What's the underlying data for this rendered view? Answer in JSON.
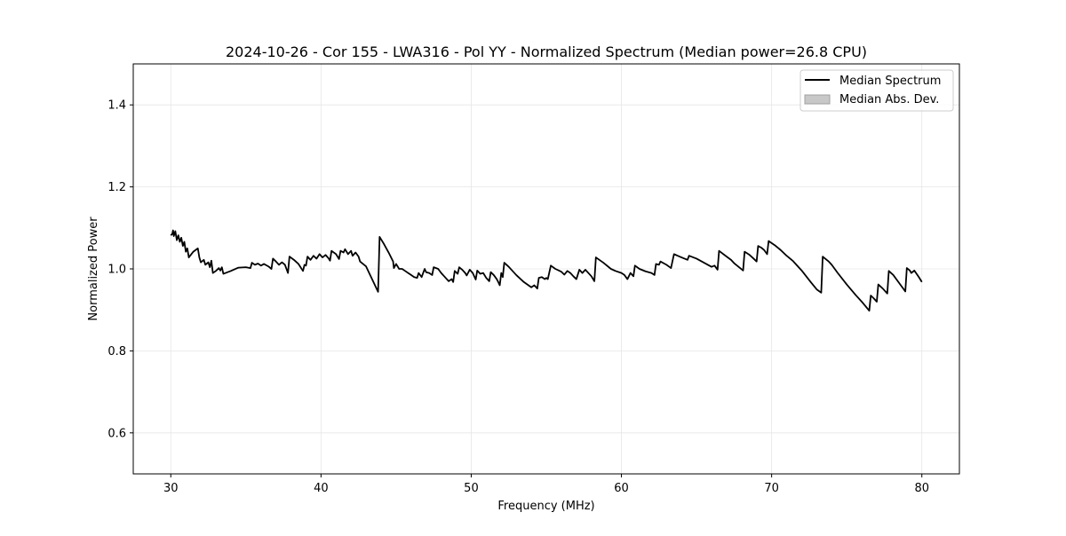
{
  "chart_data": {
    "type": "line",
    "title": "2024-10-26 - Cor 155 - LWA316 - Pol YY - Normalized Spectrum (Median power=26.8 CPU)",
    "xlabel": "Frequency (MHz)",
    "ylabel": "Normalized Power",
    "xlim": [
      27.5,
      82.5
    ],
    "ylim": [
      0.5,
      1.5
    ],
    "xticks": [
      30,
      40,
      50,
      60,
      70,
      80
    ],
    "yticks": [
      0.6,
      0.8,
      1.0,
      1.2,
      1.4
    ],
    "xtick_labels": [
      "30",
      "40",
      "50",
      "60",
      "70",
      "80"
    ],
    "ytick_labels": [
      "0.6",
      "0.8",
      "1.0",
      "1.2",
      "1.4"
    ],
    "grid": true,
    "legend_position": "top-right",
    "legend": [
      {
        "label": "Median Spectrum",
        "kind": "line",
        "color": "#000000"
      },
      {
        "label": "Median Abs. Dev.",
        "kind": "patch",
        "color": "#c8c8c8"
      }
    ],
    "series": [
      {
        "name": "Median Spectrum",
        "color": "#000000",
        "points": [
          [
            30.0,
            1.082
          ],
          [
            30.1,
            1.085
          ],
          [
            30.15,
            1.094
          ],
          [
            30.2,
            1.08
          ],
          [
            30.3,
            1.092
          ],
          [
            30.4,
            1.07
          ],
          [
            30.5,
            1.082
          ],
          [
            30.6,
            1.066
          ],
          [
            30.7,
            1.076
          ],
          [
            30.8,
            1.056
          ],
          [
            30.9,
            1.066
          ],
          [
            31.0,
            1.042
          ],
          [
            31.1,
            1.05
          ],
          [
            31.2,
            1.028
          ],
          [
            31.5,
            1.042
          ],
          [
            31.8,
            1.05
          ],
          [
            31.9,
            1.028
          ],
          [
            32.0,
            1.016
          ],
          [
            32.2,
            1.022
          ],
          [
            32.3,
            1.01
          ],
          [
            32.5,
            1.016
          ],
          [
            32.6,
            1.004
          ],
          [
            32.7,
            1.02
          ],
          [
            32.8,
            0.99
          ],
          [
            33.0,
            0.995
          ],
          [
            33.2,
            1.002
          ],
          [
            33.3,
            0.996
          ],
          [
            33.4,
            1.004
          ],
          [
            33.5,
            0.988
          ],
          [
            34.0,
            0.995
          ],
          [
            34.5,
            1.003
          ],
          [
            35.0,
            1.004
          ],
          [
            35.3,
            1.002
          ],
          [
            35.4,
            1.015
          ],
          [
            35.6,
            1.01
          ],
          [
            35.8,
            1.013
          ],
          [
            36.0,
            1.008
          ],
          [
            36.2,
            1.012
          ],
          [
            36.5,
            1.006
          ],
          [
            36.7,
            1.0
          ],
          [
            36.8,
            1.025
          ],
          [
            37.0,
            1.018
          ],
          [
            37.2,
            1.01
          ],
          [
            37.4,
            1.016
          ],
          [
            37.6,
            1.01
          ],
          [
            37.8,
            0.99
          ],
          [
            37.9,
            1.03
          ],
          [
            38.2,
            1.022
          ],
          [
            38.5,
            1.012
          ],
          [
            38.8,
            0.995
          ],
          [
            38.9,
            1.01
          ],
          [
            39.0,
            1.008
          ],
          [
            39.1,
            1.03
          ],
          [
            39.3,
            1.022
          ],
          [
            39.5,
            1.032
          ],
          [
            39.7,
            1.025
          ],
          [
            39.9,
            1.036
          ],
          [
            40.1,
            1.028
          ],
          [
            40.3,
            1.034
          ],
          [
            40.5,
            1.026
          ],
          [
            40.6,
            1.02
          ],
          [
            40.7,
            1.044
          ],
          [
            41.0,
            1.036
          ],
          [
            41.2,
            1.024
          ],
          [
            41.3,
            1.044
          ],
          [
            41.5,
            1.04
          ],
          [
            41.6,
            1.048
          ],
          [
            41.8,
            1.036
          ],
          [
            42.0,
            1.044
          ],
          [
            42.1,
            1.032
          ],
          [
            42.3,
            1.04
          ],
          [
            42.5,
            1.03
          ],
          [
            42.6,
            1.018
          ],
          [
            42.8,
            1.012
          ],
          [
            43.0,
            1.006
          ],
          [
            43.8,
            0.944
          ],
          [
            43.9,
            1.078
          ],
          [
            44.2,
            1.06
          ],
          [
            44.5,
            1.04
          ],
          [
            44.8,
            1.018
          ],
          [
            44.85,
            1.002
          ],
          [
            45.0,
            1.012
          ],
          [
            45.2,
            1.0
          ],
          [
            45.4,
            1.0
          ],
          [
            45.6,
            0.995
          ],
          [
            45.8,
            0.99
          ],
          [
            46.0,
            0.985
          ],
          [
            46.2,
            0.98
          ],
          [
            46.4,
            0.978
          ],
          [
            46.5,
            0.99
          ],
          [
            46.7,
            0.98
          ],
          [
            46.9,
            1.0
          ],
          [
            47.0,
            0.992
          ],
          [
            47.2,
            0.99
          ],
          [
            47.4,
            0.985
          ],
          [
            47.5,
            1.004
          ],
          [
            47.8,
            1.0
          ],
          [
            48.0,
            0.99
          ],
          [
            48.2,
            0.982
          ],
          [
            48.5,
            0.97
          ],
          [
            48.7,
            0.975
          ],
          [
            48.8,
            0.968
          ],
          [
            48.9,
            0.995
          ],
          [
            49.1,
            0.988
          ],
          [
            49.2,
            1.004
          ],
          [
            49.4,
            0.998
          ],
          [
            49.6,
            0.99
          ],
          [
            49.7,
            0.984
          ],
          [
            49.9,
            0.998
          ],
          [
            50.1,
            0.99
          ],
          [
            50.3,
            0.974
          ],
          [
            50.4,
            0.996
          ],
          [
            50.6,
            0.988
          ],
          [
            50.8,
            0.99
          ],
          [
            51.0,
            0.978
          ],
          [
            51.2,
            0.97
          ],
          [
            51.3,
            0.992
          ],
          [
            51.5,
            0.985
          ],
          [
            51.7,
            0.975
          ],
          [
            51.8,
            0.968
          ],
          [
            51.9,
            0.96
          ],
          [
            52.0,
            0.99
          ],
          [
            52.1,
            0.98
          ],
          [
            52.2,
            1.015
          ],
          [
            52.5,
            1.005
          ],
          [
            53.0,
            0.985
          ],
          [
            53.5,
            0.968
          ],
          [
            54.0,
            0.955
          ],
          [
            54.2,
            0.96
          ],
          [
            54.4,
            0.952
          ],
          [
            54.5,
            0.978
          ],
          [
            54.7,
            0.98
          ],
          [
            54.9,
            0.975
          ],
          [
            55.0,
            0.978
          ],
          [
            55.1,
            0.975
          ],
          [
            55.3,
            1.008
          ],
          [
            55.6,
            1.0
          ],
          [
            56.0,
            0.993
          ],
          [
            56.2,
            0.986
          ],
          [
            56.4,
            0.995
          ],
          [
            56.6,
            0.99
          ],
          [
            56.8,
            0.982
          ],
          [
            57.0,
            0.975
          ],
          [
            57.2,
            0.998
          ],
          [
            57.4,
            0.99
          ],
          [
            57.6,
            0.998
          ],
          [
            58.0,
            0.982
          ],
          [
            58.2,
            0.97
          ],
          [
            58.3,
            1.028
          ],
          [
            58.8,
            1.015
          ],
          [
            59.3,
            1.0
          ],
          [
            59.6,
            0.995
          ],
          [
            60.0,
            0.99
          ],
          [
            60.2,
            0.985
          ],
          [
            60.4,
            0.975
          ],
          [
            60.6,
            0.99
          ],
          [
            60.8,
            0.982
          ],
          [
            60.9,
            1.008
          ],
          [
            61.2,
            1.0
          ],
          [
            61.6,
            0.994
          ],
          [
            62.0,
            0.99
          ],
          [
            62.2,
            0.985
          ],
          [
            62.3,
            1.012
          ],
          [
            62.5,
            1.01
          ],
          [
            62.6,
            1.018
          ],
          [
            63.0,
            1.01
          ],
          [
            63.3,
            1.002
          ],
          [
            63.5,
            1.036
          ],
          [
            64.0,
            1.028
          ],
          [
            64.4,
            1.022
          ],
          [
            64.5,
            1.032
          ],
          [
            65.0,
            1.025
          ],
          [
            65.5,
            1.015
          ],
          [
            66.0,
            1.005
          ],
          [
            66.2,
            1.008
          ],
          [
            66.4,
            0.998
          ],
          [
            66.5,
            1.044
          ],
          [
            67.0,
            1.03
          ],
          [
            67.3,
            1.022
          ],
          [
            67.5,
            1.014
          ],
          [
            67.9,
            1.002
          ],
          [
            68.1,
            0.996
          ],
          [
            68.2,
            1.042
          ],
          [
            68.5,
            1.035
          ],
          [
            68.8,
            1.025
          ],
          [
            69.0,
            1.018
          ],
          [
            69.1,
            1.056
          ],
          [
            69.3,
            1.052
          ],
          [
            69.5,
            1.046
          ],
          [
            69.7,
            1.036
          ],
          [
            69.8,
            1.068
          ],
          [
            70.2,
            1.058
          ],
          [
            70.6,
            1.046
          ],
          [
            71.0,
            1.032
          ],
          [
            71.4,
            1.02
          ],
          [
            72.0,
            0.996
          ],
          [
            72.6,
            0.968
          ],
          [
            73.0,
            0.95
          ],
          [
            73.3,
            0.942
          ],
          [
            73.4,
            1.03
          ],
          [
            73.8,
            1.018
          ],
          [
            74.0,
            1.01
          ],
          [
            74.4,
            0.99
          ],
          [
            75.0,
            0.962
          ],
          [
            75.6,
            0.936
          ],
          [
            76.0,
            0.92
          ],
          [
            76.5,
            0.898
          ],
          [
            76.6,
            0.935
          ],
          [
            76.8,
            0.928
          ],
          [
            77.0,
            0.92
          ],
          [
            77.1,
            0.962
          ],
          [
            77.4,
            0.952
          ],
          [
            77.7,
            0.94
          ],
          [
            77.8,
            0.995
          ],
          [
            78.1,
            0.985
          ],
          [
            78.4,
            0.97
          ],
          [
            78.6,
            0.96
          ],
          [
            78.9,
            0.945
          ],
          [
            79.0,
            1.002
          ],
          [
            79.2,
            0.996
          ],
          [
            79.3,
            0.99
          ],
          [
            79.5,
            0.996
          ],
          [
            79.8,
            0.98
          ],
          [
            80.0,
            0.968
          ]
        ]
      }
    ]
  }
}
